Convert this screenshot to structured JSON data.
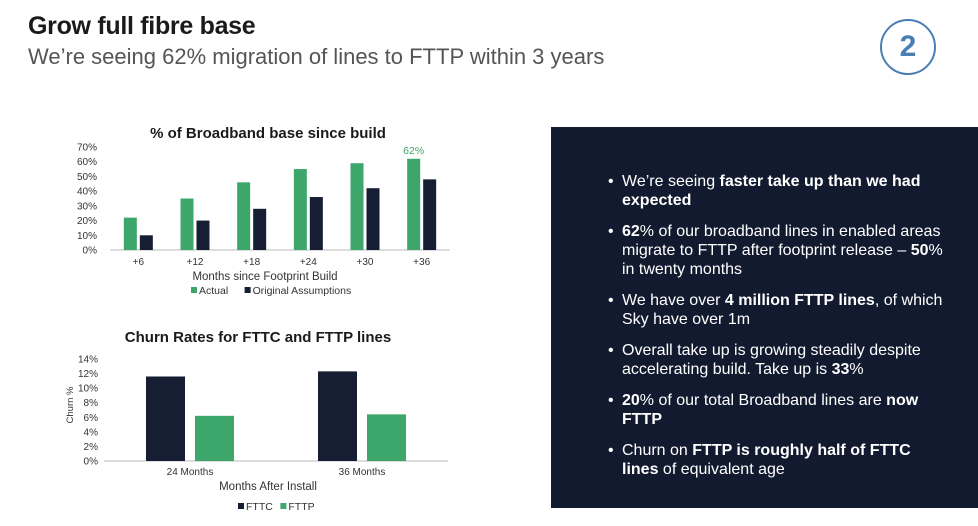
{
  "header": {
    "title": "Grow full fibre base",
    "subtitle": "We’re seeing 62% migration of lines to FTTP within 3 years",
    "badge": "2"
  },
  "chart_data": [
    {
      "type": "bar",
      "title": "% of Broadband base since build",
      "xlabel": "Months since Footprint Build",
      "ylabel": "",
      "categories": [
        "+6",
        "+12",
        "+18",
        "+24",
        "+30",
        "+36"
      ],
      "y_ticks": [
        "0%",
        "10%",
        "20%",
        "30%",
        "40%",
        "50%",
        "60%",
        "70%"
      ],
      "ylim": [
        0,
        70
      ],
      "series": [
        {
          "name": "Actual",
          "color": "#3da66a",
          "values": [
            22,
            35,
            46,
            55,
            59,
            62
          ]
        },
        {
          "name": "Original Assumptions",
          "color": "#161e33",
          "values": [
            10,
            20,
            28,
            36,
            42,
            48
          ]
        }
      ],
      "annotation": "62%",
      "grid": false,
      "legend_position": "bottom"
    },
    {
      "type": "bar",
      "title": "Churn Rates for FTTC and FTTP lines",
      "xlabel": "Months After Install",
      "ylabel": "Churn %",
      "categories": [
        "24 Months",
        "36 Months"
      ],
      "y_ticks": [
        "0%",
        "2%",
        "4%",
        "6%",
        "8%",
        "10%",
        "12%",
        "14%"
      ],
      "ylim": [
        0,
        14
      ],
      "series": [
        {
          "name": "FTTC",
          "color": "#161e33",
          "values": [
            11.6,
            12.3
          ]
        },
        {
          "name": "FTTP",
          "color": "#3da66a",
          "values": [
            6.2,
            6.4
          ]
        }
      ],
      "grid": false,
      "legend_position": "bottom"
    }
  ],
  "panel": {
    "bullets": [
      [
        {
          "t": "We’re seeing ",
          "b": false
        },
        {
          "t": "faster take up than we had expected",
          "b": true
        }
      ],
      [
        {
          "t": "62",
          "b": true
        },
        {
          "t": "% of our broadband lines in enabled areas migrate to FTTP after footprint release – ",
          "b": false
        },
        {
          "t": "50",
          "b": true
        },
        {
          "t": "% in twenty months",
          "b": false
        }
      ],
      [
        {
          "t": "We have over ",
          "b": false
        },
        {
          "t": "4 million FTTP lines",
          "b": true
        },
        {
          "t": ", of which Sky have over 1m",
          "b": false
        }
      ],
      [
        {
          "t": "Overall take up is growing steadily despite accelerating build. Take up is ",
          "b": false
        },
        {
          "t": "33",
          "b": true
        },
        {
          "t": "%",
          "b": false
        }
      ],
      [
        {
          "t": "20",
          "b": true
        },
        {
          "t": "% of our total Broadband lines are ",
          "b": false
        },
        {
          "t": "now FTTP",
          "b": true
        }
      ],
      [
        {
          "t": "Churn on ",
          "b": false
        },
        {
          "t": "FTTP is roughly half of FTTC lines",
          "b": true
        },
        {
          "t": " of equivalent age",
          "b": false
        }
      ]
    ]
  }
}
